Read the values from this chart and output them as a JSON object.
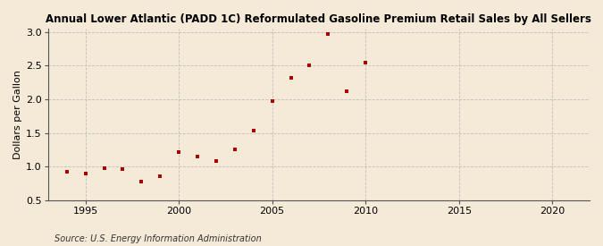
{
  "title": "Annual Lower Atlantic (PADD 1C) Reformulated Gasoline Premium Retail Sales by All Sellers",
  "ylabel": "Dollars per Gallon",
  "source": "Source: U.S. Energy Information Administration",
  "background_color": "#f5ead8",
  "marker_color": "#aa0000",
  "grid_color": "#bbbbbb",
  "xlim": [
    1993,
    2022
  ],
  "ylim": [
    0.5,
    3.05
  ],
  "xticks": [
    1995,
    2000,
    2005,
    2010,
    2015,
    2020
  ],
  "yticks": [
    0.5,
    1.0,
    1.5,
    2.0,
    2.5,
    3.0
  ],
  "years": [
    1994,
    1995,
    1996,
    1997,
    1998,
    1999,
    2000,
    2001,
    2002,
    2003,
    2004,
    2005,
    2006,
    2007,
    2008,
    2009,
    2010
  ],
  "values": [
    0.92,
    0.9,
    0.97,
    0.96,
    0.78,
    0.86,
    1.21,
    1.15,
    1.08,
    1.26,
    1.54,
    1.97,
    2.32,
    2.5,
    2.97,
    2.12,
    2.54
  ]
}
